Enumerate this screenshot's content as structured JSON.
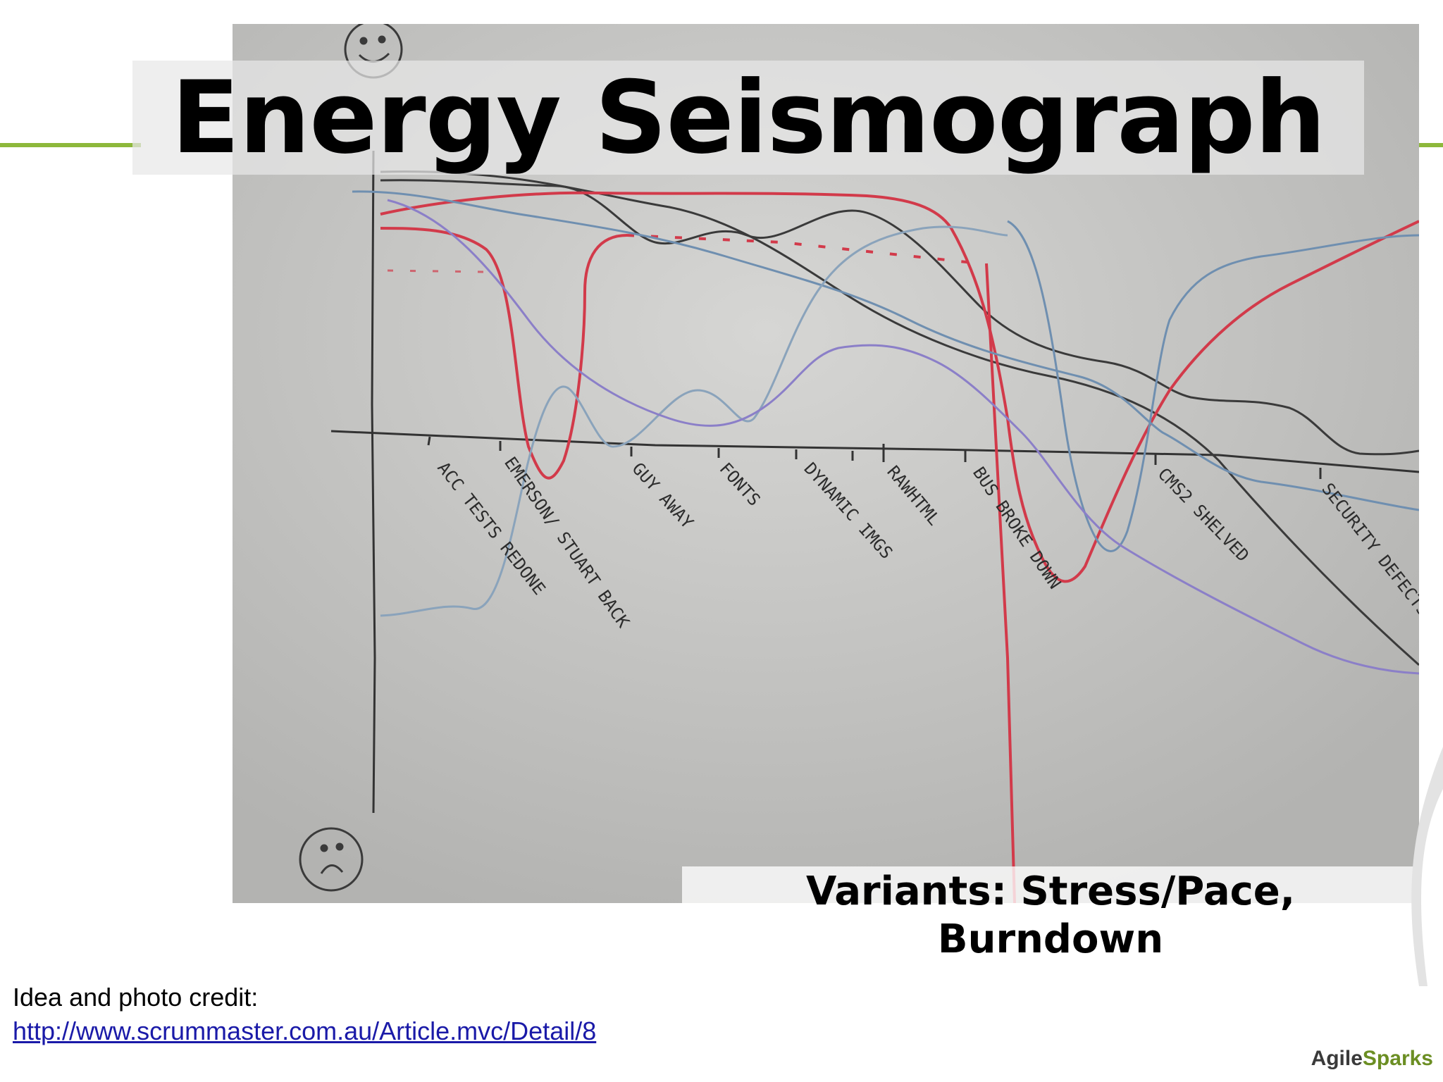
{
  "slide": {
    "title": "Energy Seismograph",
    "caption_line1": "Variants: Stress/Pace,",
    "caption_line2": "Burndown",
    "credit_label": "Idea and photo credit:",
    "credit_link": "http://www.scrummaster.com.au/Article.mvc/Detail/8",
    "logo_part1": "Agile",
    "logo_part2": "Sparks"
  },
  "photo": {
    "icons": [
      "happy-face-icon",
      "sad-face-icon"
    ],
    "axis_markers": [
      "ACC TESTS REDONE",
      "EMERSON/ STUART BACK",
      "GUY AWAY",
      "FONTS",
      "DYNAMIC IMGS",
      "RAWHTML",
      "BUS BROKE DOWN",
      "CMS2 SHELVED",
      "SECURITY DEFECTS"
    ]
  },
  "colors": {
    "accent": "#8db83b",
    "ink_dark": "#3a3a3a",
    "ink_red": "#d23a4a",
    "ink_blue": "#6f8fb0",
    "ink_violet": "#8b7fc8"
  }
}
